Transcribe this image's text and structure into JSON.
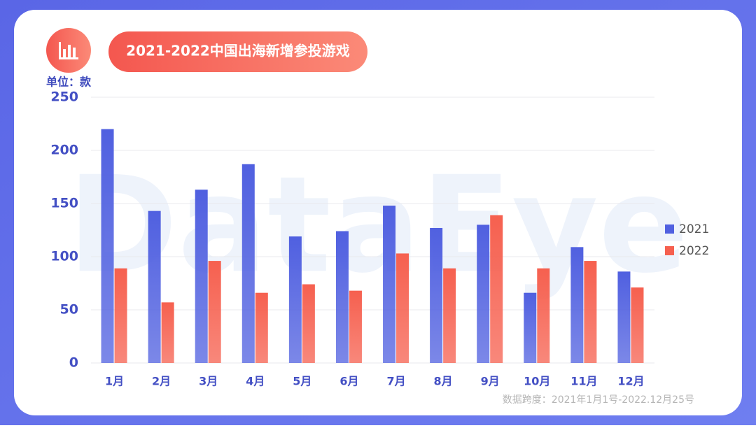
{
  "chart_data": {
    "type": "bar",
    "title": "2021-2022中国出海新增参投游戏",
    "unit_label": "单位：款",
    "watermark": "DataEye",
    "footnote": "数据跨度：2021年1月1号-2022.12月25号",
    "categories": [
      "1月",
      "2月",
      "3月",
      "4月",
      "5月",
      "6月",
      "7月",
      "8月",
      "9月",
      "10月",
      "11月",
      "12月"
    ],
    "series": [
      {
        "name": "2021",
        "color": "#5060e0",
        "values": [
          220,
          143,
          163,
          187,
          119,
          124,
          148,
          127,
          130,
          66,
          109,
          86
        ]
      },
      {
        "name": "2022",
        "color": "#f6604f",
        "values": [
          89,
          57,
          96,
          66,
          74,
          68,
          103,
          89,
          139,
          89,
          96,
          71
        ]
      }
    ],
    "ylim": [
      0,
      250
    ],
    "yticks": [
      0,
      50,
      100,
      150,
      200,
      250
    ],
    "grid": true,
    "legend": "right"
  }
}
